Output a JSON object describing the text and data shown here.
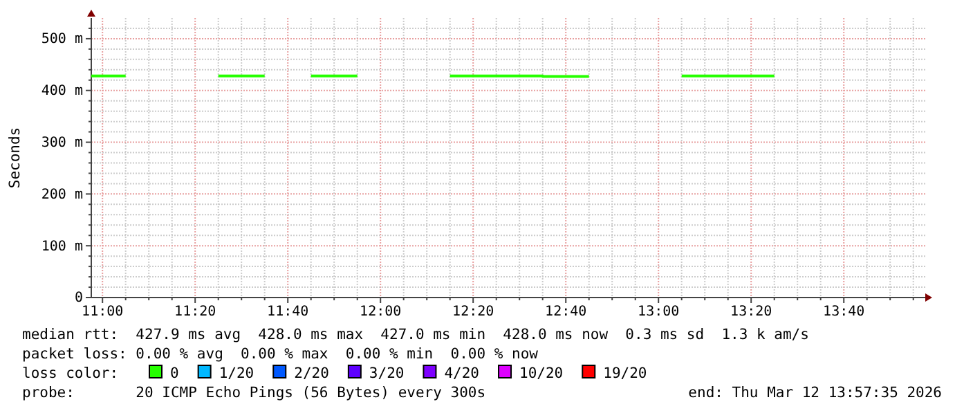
{
  "chart_data": {
    "type": "step",
    "ylabel": "Seconds",
    "x": [
      11,
      11.0833,
      11.5,
      11.5833,
      11.8333,
      11.9167,
      12.3333,
      12.4167,
      12.5,
      12.5833,
      12.6667,
      12.75,
      13.1667,
      13.25,
      13.3333,
      13.4167
    ],
    "series": [
      {
        "name": "0",
        "color": "#26ff00",
        "values": [
          428,
          428,
          428,
          428,
          428,
          428,
          428,
          428,
          428,
          428,
          427,
          427,
          428,
          428,
          428,
          428
        ]
      },
      {
        "name": "1/20",
        "color": "#00b8ff",
        "values": [
          null,
          null,
          null,
          null,
          null,
          null,
          null,
          null,
          null,
          null,
          null,
          null,
          null,
          null,
          null,
          null
        ]
      },
      {
        "name": "2/20",
        "color": "#0059ff",
        "values": [
          null,
          null,
          null,
          null,
          null,
          null,
          null,
          null,
          null,
          null,
          null,
          null,
          null,
          null,
          null,
          null
        ]
      },
      {
        "name": "3/20",
        "color": "#5e00ff",
        "values": [
          null,
          null,
          null,
          null,
          null,
          null,
          null,
          null,
          null,
          null,
          null,
          null,
          null,
          null,
          null,
          null
        ]
      },
      {
        "name": "4/20",
        "color": "#7e00ff",
        "values": [
          null,
          null,
          null,
          null,
          null,
          null,
          null,
          null,
          null,
          null,
          null,
          null,
          null,
          null,
          null,
          null
        ]
      },
      {
        "name": "10/20",
        "color": "#dd00ff",
        "values": [
          null,
          null,
          null,
          null,
          null,
          null,
          null,
          null,
          null,
          null,
          null,
          null,
          null,
          null,
          null,
          null
        ]
      },
      {
        "name": "19/20",
        "color": "#ff0000",
        "values": [
          null,
          null,
          null,
          null,
          null,
          null,
          null,
          null,
          null,
          null,
          null,
          null,
          null,
          null,
          null,
          null
        ]
      }
    ],
    "xlim": [
      10.9597,
      13.9597
    ],
    "xticks": [
      {
        "value": 11,
        "label": "11:00"
      },
      {
        "value": 11.0833,
        "label": null
      },
      {
        "value": 11.1667,
        "label": null
      },
      {
        "value": 11.25,
        "label": null
      },
      {
        "value": 11.3333,
        "label": "11:20"
      },
      {
        "value": 11.4167,
        "label": null
      },
      {
        "value": 11.5,
        "label": null
      },
      {
        "value": 11.5833,
        "label": null
      },
      {
        "value": 11.6667,
        "label": "11:40"
      },
      {
        "value": 11.75,
        "label": null
      },
      {
        "value": 11.8333,
        "label": null
      },
      {
        "value": 11.9167,
        "label": null
      },
      {
        "value": 12,
        "label": "12:00"
      },
      {
        "value": 12.0833,
        "label": null
      },
      {
        "value": 12.1667,
        "label": null
      },
      {
        "value": 12.25,
        "label": null
      },
      {
        "value": 12.3333,
        "label": "12:20"
      },
      {
        "value": 12.4167,
        "label": null
      },
      {
        "value": 12.5,
        "label": null
      },
      {
        "value": 12.5833,
        "label": null
      },
      {
        "value": 12.6667,
        "label": "12:40"
      },
      {
        "value": 12.75,
        "label": null
      },
      {
        "value": 12.8333,
        "label": null
      },
      {
        "value": 12.9167,
        "label": null
      },
      {
        "value": 13,
        "label": "13:00"
      },
      {
        "value": 13.0833,
        "label": null
      },
      {
        "value": 13.1667,
        "label": null
      },
      {
        "value": 13.25,
        "label": null
      },
      {
        "value": 13.3333,
        "label": "13:20"
      },
      {
        "value": 13.4167,
        "label": null
      },
      {
        "value": 13.5,
        "label": null
      },
      {
        "value": 13.5833,
        "label": null
      },
      {
        "value": 13.6667,
        "label": "13:40"
      },
      {
        "value": 13.75,
        "label": null
      },
      {
        "value": 13.8333,
        "label": null
      },
      {
        "value": 13.9167,
        "label": null
      }
    ],
    "ylim": [
      0,
      540
    ],
    "yticks": [
      0,
      {
        "value": 20,
        "label": null
      },
      {
        "value": 40,
        "label": null
      },
      {
        "value": 60,
        "label": null
      },
      {
        "value": 80,
        "label": null
      },
      {
        "value": 100,
        "label": "100 m"
      },
      {
        "value": 120,
        "label": null
      },
      {
        "value": 140,
        "label": null
      },
      {
        "value": 160,
        "label": null
      },
      {
        "value": 180,
        "label": null
      },
      {
        "value": 200,
        "label": "200 m"
      },
      {
        "value": 220,
        "label": null
      },
      {
        "value": 240,
        "label": null
      },
      {
        "value": 260,
        "label": null
      },
      {
        "value": 280,
        "label": null
      },
      {
        "value": 300,
        "label": "300 m"
      },
      {
        "value": 320,
        "label": null
      },
      {
        "value": 340,
        "label": null
      },
      {
        "value": 360,
        "label": null
      },
      {
        "value": 380,
        "label": null
      },
      {
        "value": 400,
        "label": "400 m"
      },
      {
        "value": 420,
        "label": null
      },
      {
        "value": 440,
        "label": null
      },
      {
        "value": 460,
        "label": null
      },
      {
        "value": 480,
        "label": null
      },
      {
        "value": 500,
        "label": "500 m"
      },
      {
        "value": 520,
        "label": null
      }
    ],
    "grid": true,
    "legend": "bottom",
    "legend_title": "loss color:",
    "annotations": [
      "median rtt:  427.9 ms avg  428.0 ms max  427.0 ms min  428.0 ms now  0.3 ms sd  1.3 k am/s",
      "packet loss: 0.00 % avg  0.00 % max  0.00 % min  0.00 % now",
      "probe:       20 ICMP Echo Pings (56 Bytes) every 300s",
      "end: Thu Mar 12 13:57:35 2026"
    ]
  }
}
